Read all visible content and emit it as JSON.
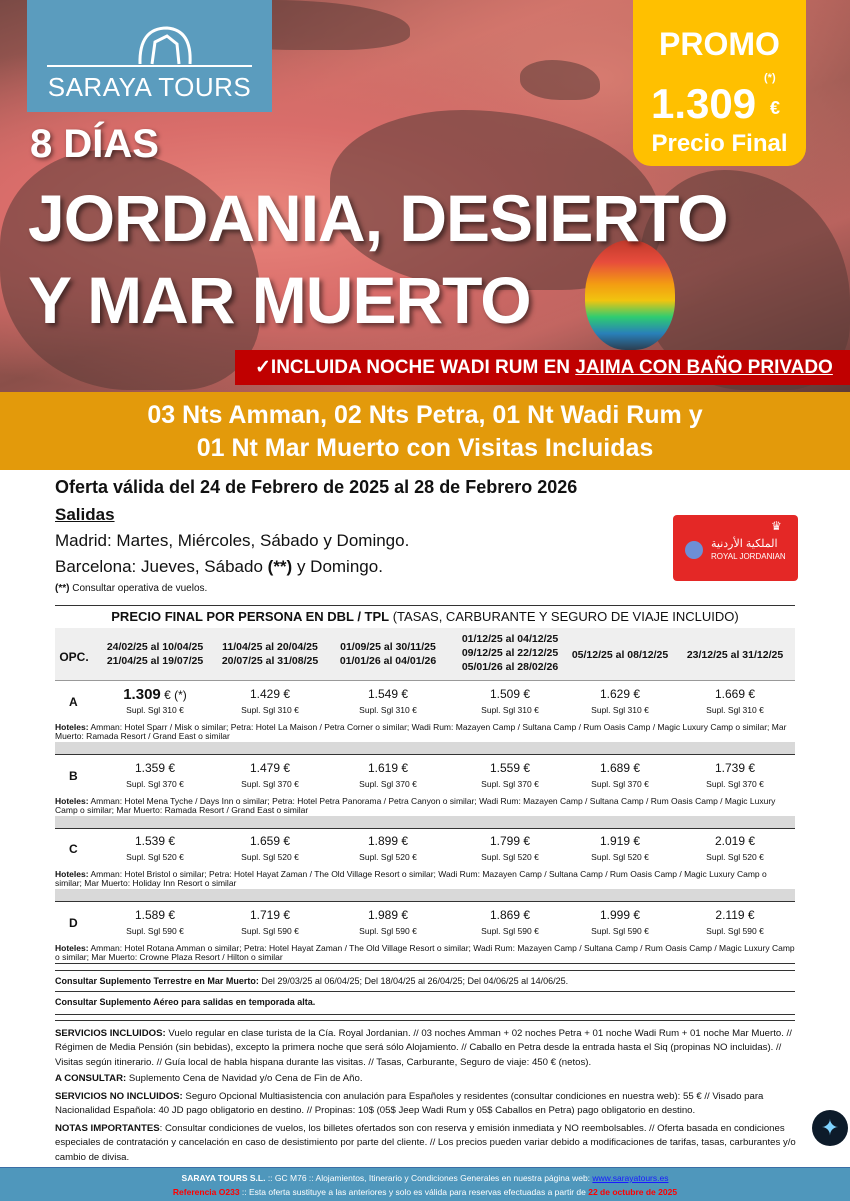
{
  "brand": {
    "name": "SARAYA TOURS"
  },
  "promo": {
    "label": "PROMO",
    "price": "1.309",
    "asterisk": "(*)",
    "currency": "€",
    "subtitle": "Precio Final",
    "color": "#FFC000"
  },
  "hero": {
    "days": "8 DÍAS",
    "title_line1": "JORDANIA, DESIERTO",
    "title_line2": "Y MAR MUERTO",
    "banner_prefix": "✓INCLUIDA NOCHE WADI RUM EN ",
    "banner_underlined": "JAIMA CON BAÑO PRIVADO"
  },
  "itinerary": {
    "line1": "03 Nts Amman,  02 Nts Petra, 01 Nt Wadi Rum y",
    "line2": "01 Nt Mar Muerto con Visitas Incluidas"
  },
  "offer": {
    "validity": "Oferta válida del 24 de Febrero de 2025 al 28 de Febrero 2026",
    "salidas_label": "Salidas",
    "madrid": "Madrid: Martes, Miércoles, Sábado y Domingo.",
    "barcelona_prefix": "Barcelona: Jueves, Sábado ",
    "barcelona_bold": "(**)",
    "barcelona_suffix": " y Domingo.",
    "note_bold": "(**)",
    "note": " Consultar operativa de vuelos."
  },
  "airline": {
    "name": "ROYAL JORDANIAN",
    "arabic": "الملكية الأردنية"
  },
  "table": {
    "title_bold": "PRECIO FINAL POR PERSONA EN DBL / TPL",
    "title_rest": " (TASAS, CARBURANTE Y SEGURO DE VIAJE INCLUIDO)",
    "opc_header": "OPC.",
    "columns": [
      [
        "24/02/25 al 10/04/25",
        "21/04/25 al 19/07/25"
      ],
      [
        "11/04/25 al 20/04/25",
        "20/07/25 al 31/08/25"
      ],
      [
        "01/09/25 al 30/11/25",
        "01/01/26 al 04/01/26"
      ],
      [
        "01/12/25 al 04/12/25",
        "09/12/25 al 22/12/25",
        "05/01/26 al 28/02/26"
      ],
      [
        "05/12/25 al 08/12/25"
      ],
      [
        "23/12/25 al 31/12/25"
      ]
    ],
    "hotels_label": "Hoteles:",
    "rows": [
      {
        "opc": "A",
        "prices": [
          "1.309",
          "1.429 €",
          "1.549 €",
          "1.509 €",
          "1.629 €",
          "1.669 €"
        ],
        "first_suffix": " € (*)",
        "supl": "Supl. Sgl 310 €",
        "hotels": " Amman: Hotel Sparr / Misk o similar; Petra: Hotel La Maison / Petra Corner o similar;  Wadi Rum: Mazayen Camp / Sultana Camp / Rum Oasis Camp / Magic Luxury Camp o similar; Mar Muerto: Ramada Resort / Grand East o similar"
      },
      {
        "opc": "B",
        "prices": [
          "1.359 €",
          "1.479 €",
          "1.619 €",
          "1.559 €",
          "1.689 €",
          "1.739 €"
        ],
        "supl": "Supl. Sgl 370 €",
        "hotels": " Amman: Hotel Mena Tyche / Days Inn o similar; Petra: Hotel Petra Panorama / Petra Canyon o similar; Wadi Rum: Mazayen Camp / Sultana Camp / Rum Oasis Camp / Magic Luxury Camp o similar; Mar Muerto: Ramada Resort / Grand East o similar"
      },
      {
        "opc": "C",
        "prices": [
          "1.539 €",
          "1.659 €",
          "1.899 €",
          "1.799 €",
          "1.919 €",
          "2.019 €"
        ],
        "supl": "Supl. Sgl 520 €",
        "hotels": "  Amman: Hotel Bristol o similar; Petra: Hotel Hayat Zaman / The Old Village Resort o similar; Wadi Rum: Mazayen Camp / Sultana Camp / Rum Oasis Camp / Magic Luxury Camp o similar; Mar Muerto: Holiday Inn Resort o similar"
      },
      {
        "opc": "D",
        "prices": [
          "1.589 €",
          "1.719 €",
          "1.989 €",
          "1.869 €",
          "1.999 €",
          "2.119 €"
        ],
        "supl": "Supl. Sgl 590 €",
        "hotels": " Amman: Hotel Rotana Amman o similar; Petra: Hotel Hayat Zaman / The Old Village Resort o similar; Wadi Rum: Mazayen Camp / Sultana Camp / Rum Oasis Camp / Magic Luxury Camp o similar; Mar Muerto: Crowne Plaza Resort / Hilton o similar"
      }
    ]
  },
  "notes": {
    "terrestre_bold": "Consultar Suplemento Terrestre en Mar Muerto:",
    "terrestre": " Del 29/03/25 al 06/04/25; Del 18/04/25 al 26/04/25; Del 04/06/25 al 14/06/25.",
    "aereo": "Consultar Suplemento Aéreo para salidas en temporada alta."
  },
  "services": {
    "incl_label": "SERVICIOS INCLUIDOS:",
    "incl": " Vuelo regular en clase turista de la Cía. Royal Jordanian. // 03 noches Amman + 02 noches Petra + 01 noche Wadi Rum + 01  noche Mar Muerto. // Régimen de Media Pensión (sin bebidas), excepto la primera noche que será sólo Alojamiento. // Caballo en Petra desde la entrada hasta el Siq (propinas NO incluidas). // Visitas según itinerario. // Guía local de habla hispana durante las visitas. // Tasas, Carburante, Seguro de viaje: 450 € (netos).",
    "consultar_label": "A CONSULTAR:",
    "consultar": " Suplemento Cena de Navidad y/o Cena de Fin de Año.",
    "no_incl_label": "SERVICIOS NO INCLUIDOS:",
    "no_incl": " Seguro Opcional Multiasistencia con anulación para Españoles y residentes (consultar condiciones en nuestra web): 55 € // Visado para Nacionalidad Española: 40 JD pago obligatorio en destino. // Propinas: 10$ (05$ Jeep Wadi Rum y 05$ Caballos en Petra) pago obligatorio en destino.",
    "notas_label": "NOTAS IMPORTANTES",
    "notas": ": Consultar condiciones de vuelos, los billetes ofertados son con reserva y emisión inmediata y NO reembolsables. // Oferta basada en condiciones especiales de contratación y cancelación en caso de desistimiento por parte del cliente. // Los precios pueden variar debido a modificaciones de tarifas, tasas, carburantes y/o cambio de divisa."
  },
  "footer": {
    "company": "SARAYA TOURS S.L.",
    "line1": " :: GC M76 ::  Alojamientos, Itinerario y Condiciones Generales en nuestra página web:  ",
    "link": "www.sarayatours.es",
    "ref": "Referencia O233",
    "line2": " :: Esta oferta sustituye a las anteriores y solo es válida para reservas efectuadas a partir de ",
    "date": "22 de octubre de 2025"
  }
}
